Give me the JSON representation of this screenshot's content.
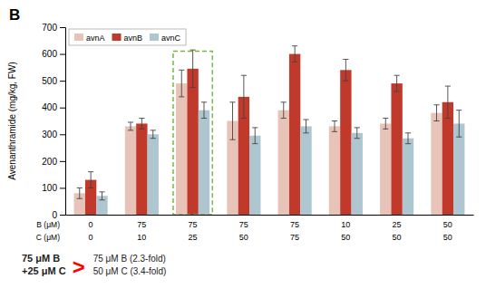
{
  "chart_data": {
    "type": "bar",
    "title": "B",
    "ylabel": "Avenanthramide (mg/kg, FW)",
    "categories": [
      [
        "0",
        "0"
      ],
      [
        "75",
        "10"
      ],
      [
        "75",
        "25"
      ],
      [
        "75",
        "50"
      ],
      [
        "75",
        "75"
      ],
      [
        "10",
        "50"
      ],
      [
        "25",
        "50"
      ],
      [
        "50",
        "50"
      ]
    ],
    "category_rows": [
      "B  (μM)",
      "C  (μM)"
    ],
    "series": [
      {
        "name": "avnA",
        "color": "#e8c4b8",
        "values": [
          80,
          330,
          490,
          350,
          390,
          330,
          340,
          380
        ],
        "errors": [
          20,
          15,
          50,
          70,
          30,
          20,
          20,
          30
        ]
      },
      {
        "name": "avnB",
        "color": "#c0392b",
        "values": [
          130,
          340,
          545,
          440,
          600,
          540,
          490,
          420
        ],
        "errors": [
          30,
          20,
          70,
          80,
          30,
          40,
          30,
          60
        ]
      },
      {
        "name": "avnC",
        "color": "#aec6cf",
        "values": [
          70,
          300,
          390,
          295,
          330,
          305,
          285,
          340
        ],
        "errors": [
          15,
          15,
          30,
          30,
          25,
          20,
          20,
          50
        ]
      }
    ],
    "ylim": [
      0,
      700
    ],
    "yticks": [
      0,
      100,
      200,
      300,
      400,
      500,
      600,
      700
    ],
    "legend": "upper left",
    "highlight": {
      "category": 2,
      "top": 610,
      "color": "#7ab648"
    },
    "annotations": [
      {
        "text": "75 μM B\n+25 μM C"
      },
      {
        "text": ">",
        "color": "red"
      },
      {
        "text": "75 μM B (2.3-fold)"
      },
      {
        "text": "50 μM  C (3.4-fold)"
      }
    ]
  }
}
